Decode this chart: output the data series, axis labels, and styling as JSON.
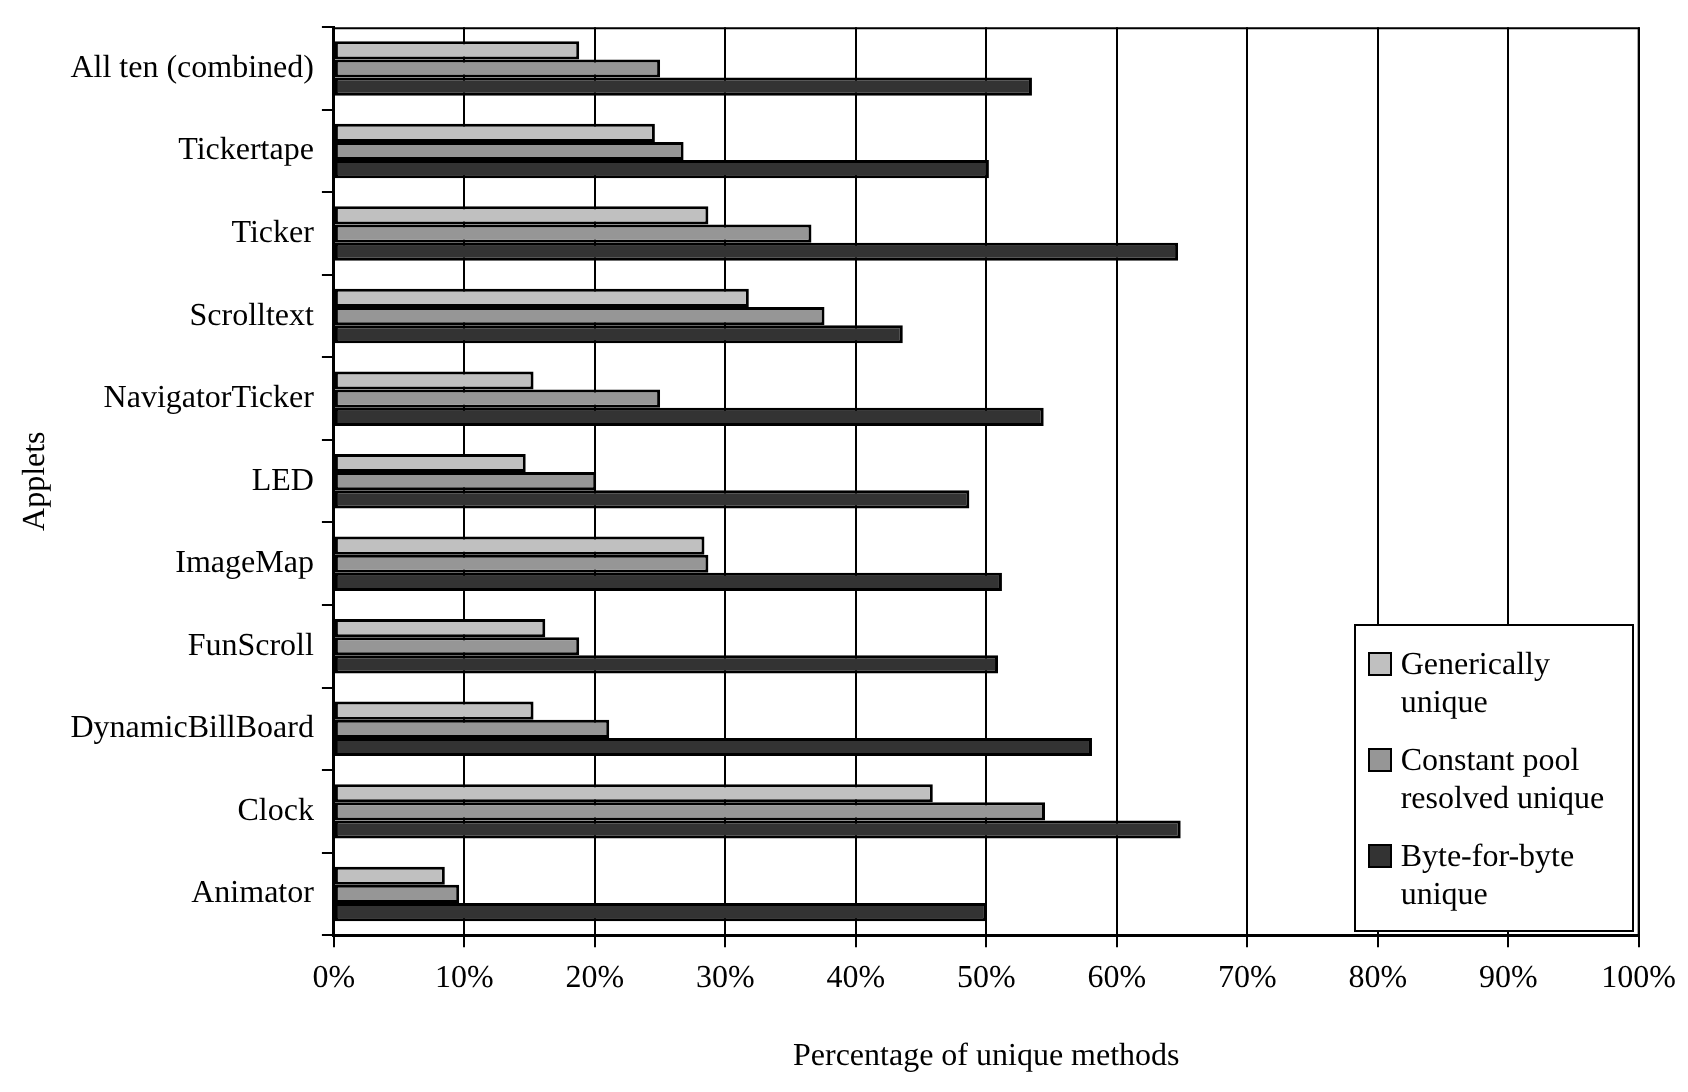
{
  "chart_data": {
    "type": "bar",
    "orientation": "horizontal",
    "xlabel": "Percentage of unique methods",
    "ylabel": "Applets",
    "categories": [
      "All ten (combined)",
      "Tickertape",
      "Ticker",
      "Scrolltext",
      "NavigatorTicker",
      "LED",
      "ImageMap",
      "FunScroll",
      "DynamicBillBoard",
      "Clock",
      "Animator"
    ],
    "series": [
      {
        "name": "Generically unique",
        "color": "#c0c0c0",
        "values": [
          18.8,
          24.6,
          28.7,
          31.8,
          15.3,
          14.7,
          28.4,
          16.2,
          15.3,
          45.9,
          8.5
        ]
      },
      {
        "name": "Constant pool resolved unique",
        "color": "#969696",
        "values": [
          25,
          26.8,
          36.6,
          37.6,
          25,
          20.1,
          28.7,
          18.8,
          21.1,
          54.5,
          9.6
        ]
      },
      {
        "name": "Byte-for-byte unique",
        "color": "#333333",
        "values": [
          53.5,
          50.2,
          64.7,
          43.6,
          54.4,
          48.7,
          51.2,
          50.9,
          58.1,
          64.9,
          50
        ]
      }
    ],
    "xlim": [
      0,
      100
    ],
    "xticks": [
      {
        "value": 0,
        "label": "0%"
      },
      {
        "value": 10,
        "label": "10%"
      },
      {
        "value": 20,
        "label": "20%"
      },
      {
        "value": 30,
        "label": "30%"
      },
      {
        "value": 40,
        "label": "40%"
      },
      {
        "value": 50,
        "label": "50%"
      },
      {
        "value": 60,
        "label": "60%"
      },
      {
        "value": 70,
        "label": "70%"
      },
      {
        "value": 80,
        "label": "80%"
      },
      {
        "value": 90,
        "label": "90%"
      },
      {
        "value": 100,
        "label": "100%"
      }
    ],
    "grid": "x",
    "legend": "bottom right"
  }
}
